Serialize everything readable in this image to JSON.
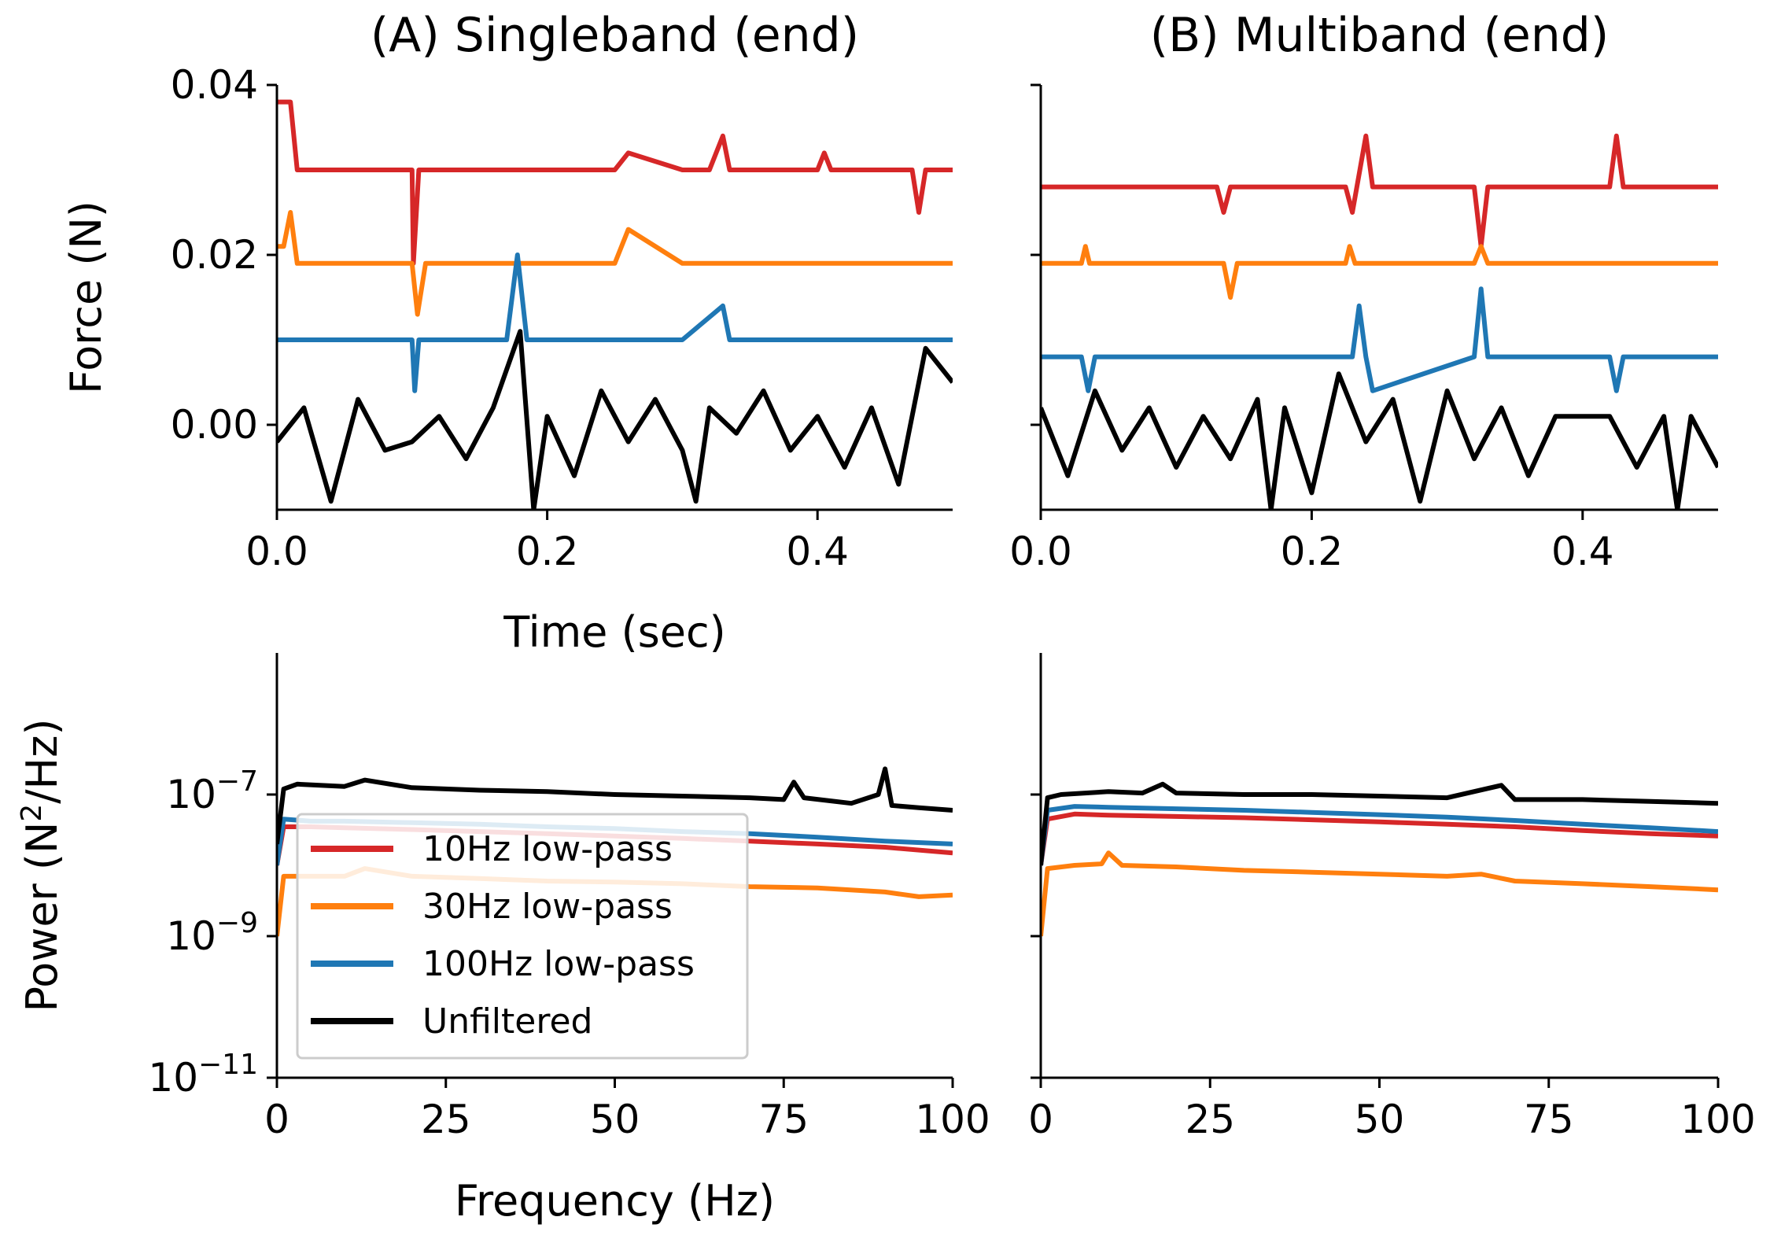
{
  "colors": {
    "red": "#d62728",
    "orange": "#ff7f0e",
    "blue": "#1f77b4",
    "black": "#000000"
  },
  "legend": {
    "placement": "lower-left",
    "entries": [
      {
        "label": "10Hz low-pass",
        "color": "#d62728"
      },
      {
        "label": "30Hz low-pass",
        "color": "#ff7f0e"
      },
      {
        "label": "100Hz low-pass",
        "color": "#1f77b4"
      },
      {
        "label": "Unfiltered",
        "color": "#000000"
      }
    ]
  },
  "chart_data": [
    {
      "panel": "A-top",
      "type": "line",
      "title": "(A) Singleband (end)",
      "xlabel": "Time (sec)",
      "ylabel": "Force (N)",
      "xlim": [
        0,
        0.5
      ],
      "ylim": [
        -0.01,
        0.04
      ],
      "xticks": [
        "0.0",
        "0.2",
        "0.4"
      ],
      "yticks": [
        "0.04",
        "0.02",
        "0.00"
      ],
      "series": [
        {
          "color": "#d62728",
          "x": [
            0,
            0.005,
            0.01,
            0.015,
            0.02,
            0.03,
            0.05,
            0.1,
            0.101,
            0.105,
            0.11,
            0.15,
            0.2,
            0.25,
            0.26,
            0.3,
            0.32,
            0.33,
            0.335,
            0.4,
            0.405,
            0.41,
            0.47,
            0.475,
            0.48,
            0.5
          ],
          "y": [
            0.038,
            0.038,
            0.038,
            0.03,
            0.03,
            0.03,
            0.03,
            0.03,
            0.019,
            0.03,
            0.03,
            0.03,
            0.03,
            0.03,
            0.032,
            0.03,
            0.03,
            0.034,
            0.03,
            0.03,
            0.032,
            0.03,
            0.03,
            0.025,
            0.03,
            0.03
          ]
        },
        {
          "color": "#ff7f0e",
          "x": [
            0,
            0.005,
            0.01,
            0.015,
            0.05,
            0.1,
            0.104,
            0.11,
            0.2,
            0.25,
            0.26,
            0.3,
            0.4,
            0.5
          ],
          "y": [
            0.021,
            0.021,
            0.025,
            0.019,
            0.019,
            0.019,
            0.013,
            0.019,
            0.019,
            0.019,
            0.023,
            0.019,
            0.019,
            0.019
          ]
        },
        {
          "color": "#1f77b4",
          "x": [
            0,
            0.005,
            0.01,
            0.1,
            0.102,
            0.105,
            0.17,
            0.178,
            0.185,
            0.3,
            0.33,
            0.335,
            0.4,
            0.5
          ],
          "y": [
            0.01,
            0.01,
            0.01,
            0.01,
            0.004,
            0.01,
            0.01,
            0.02,
            0.01,
            0.01,
            0.014,
            0.01,
            0.01,
            0.01
          ]
        },
        {
          "color": "#000000",
          "x": [
            0,
            0.02,
            0.04,
            0.06,
            0.08,
            0.1,
            0.12,
            0.14,
            0.16,
            0.18,
            0.19,
            0.2,
            0.22,
            0.24,
            0.26,
            0.28,
            0.3,
            0.31,
            0.32,
            0.34,
            0.36,
            0.38,
            0.4,
            0.42,
            0.44,
            0.46,
            0.48,
            0.5
          ],
          "y": [
            -0.002,
            0.002,
            -0.009,
            0.003,
            -0.003,
            -0.002,
            0.001,
            -0.004,
            0.002,
            0.011,
            -0.01,
            0.001,
            -0.006,
            0.004,
            -0.002,
            0.003,
            -0.003,
            -0.009,
            0.002,
            -0.001,
            0.004,
            -0.003,
            0.001,
            -0.005,
            0.002,
            -0.007,
            0.009,
            0.005
          ]
        }
      ]
    },
    {
      "panel": "B-top",
      "type": "line",
      "title": "(B) Multiband (end)",
      "xlabel": "",
      "ylabel": "",
      "xlim": [
        0,
        0.5
      ],
      "ylim": [
        -0.01,
        0.04
      ],
      "xticks": [
        "0.0",
        "0.2",
        "0.4"
      ],
      "yticks": [],
      "series": [
        {
          "color": "#d62728",
          "x": [
            0,
            0.04,
            0.13,
            0.135,
            0.14,
            0.225,
            0.23,
            0.24,
            0.245,
            0.32,
            0.325,
            0.33,
            0.42,
            0.425,
            0.43,
            0.5
          ],
          "y": [
            0.028,
            0.028,
            0.028,
            0.025,
            0.028,
            0.028,
            0.025,
            0.034,
            0.028,
            0.028,
            0.021,
            0.028,
            0.028,
            0.034,
            0.028,
            0.028
          ]
        },
        {
          "color": "#ff7f0e",
          "x": [
            0,
            0.03,
            0.033,
            0.036,
            0.135,
            0.14,
            0.145,
            0.225,
            0.228,
            0.232,
            0.32,
            0.325,
            0.33,
            0.5
          ],
          "y": [
            0.019,
            0.019,
            0.021,
            0.019,
            0.019,
            0.015,
            0.019,
            0.019,
            0.021,
            0.019,
            0.019,
            0.021,
            0.019,
            0.019
          ]
        },
        {
          "color": "#1f77b4",
          "x": [
            0,
            0.03,
            0.035,
            0.04,
            0.23,
            0.235,
            0.24,
            0.245,
            0.32,
            0.325,
            0.33,
            0.42,
            0.425,
            0.43,
            0.5
          ],
          "y": [
            0.008,
            0.008,
            0.004,
            0.008,
            0.008,
            0.014,
            0.008,
            0.004,
            0.008,
            0.016,
            0.008,
            0.008,
            0.004,
            0.008,
            0.008
          ]
        },
        {
          "color": "#000000",
          "x": [
            0,
            0.02,
            0.04,
            0.06,
            0.08,
            0.1,
            0.12,
            0.14,
            0.16,
            0.17,
            0.18,
            0.2,
            0.22,
            0.24,
            0.26,
            0.28,
            0.3,
            0.32,
            0.34,
            0.36,
            0.38,
            0.4,
            0.42,
            0.44,
            0.46,
            0.47,
            0.48,
            0.5
          ],
          "y": [
            0.002,
            -0.006,
            0.004,
            -0.003,
            0.002,
            -0.005,
            0.001,
            -0.004,
            0.003,
            -0.01,
            0.002,
            -0.008,
            0.006,
            -0.002,
            0.003,
            -0.009,
            0.004,
            -0.004,
            0.002,
            -0.006,
            0.001,
            0.001,
            0.001,
            -0.005,
            0.001,
            -0.01,
            0.001,
            -0.005
          ]
        }
      ]
    },
    {
      "panel": "A-bottom",
      "type": "line",
      "title": "",
      "xlabel": "Frequency (Hz)",
      "ylabel": "Power (N²/Hz)",
      "xlim": [
        0,
        100
      ],
      "ylim": [
        1e-11,
        1e-05
      ],
      "yscale": "log",
      "xticks": [
        "0",
        "25",
        "50",
        "75",
        "100"
      ],
      "yticks": [
        "10⁻⁷",
        "10⁻⁹",
        "10⁻¹¹"
      ],
      "series": [
        {
          "color": "#d62728",
          "x": [
            0,
            1,
            5,
            10,
            20,
            30,
            40,
            50,
            60,
            70,
            80,
            90,
            100
          ],
          "y": [
            1e-08,
            3.5e-08,
            3.5e-08,
            3.4e-08,
            3.2e-08,
            3e-08,
            2.8e-08,
            2.6e-08,
            2.4e-08,
            2.2e-08,
            2e-08,
            1.8e-08,
            1.5e-08
          ]
        },
        {
          "color": "#ff7f0e",
          "x": [
            0,
            1,
            5,
            10,
            13,
            20,
            30,
            40,
            50,
            60,
            70,
            80,
            90,
            95,
            100
          ],
          "y": [
            1e-09,
            7e-09,
            7e-09,
            7e-09,
            9e-09,
            7e-09,
            6.5e-09,
            6e-09,
            5.8e-09,
            5.5e-09,
            5e-09,
            4.8e-09,
            4.2e-09,
            3.6e-09,
            3.8e-09
          ]
        },
        {
          "color": "#1f77b4",
          "x": [
            0,
            1,
            5,
            10,
            20,
            30,
            40,
            50,
            60,
            70,
            80,
            90,
            100
          ],
          "y": [
            1e-08,
            4.5e-08,
            4.2e-08,
            4.2e-08,
            4e-08,
            3.8e-08,
            3.5e-08,
            3.3e-08,
            3e-08,
            2.8e-08,
            2.5e-08,
            2.2e-08,
            2e-08
          ]
        },
        {
          "color": "#000000",
          "x": [
            0,
            1,
            3,
            10,
            13,
            20,
            30,
            40,
            50,
            60,
            70,
            75,
            76.5,
            78,
            85,
            89,
            90,
            91,
            95,
            100
          ],
          "y": [
            2e-08,
            1.2e-07,
            1.4e-07,
            1.3e-07,
            1.6e-07,
            1.25e-07,
            1.15e-07,
            1.1e-07,
            1e-07,
            9.5e-08,
            9e-08,
            8.5e-08,
            1.5e-07,
            9e-08,
            7.5e-08,
            1e-07,
            2.3e-07,
            7e-08,
            6.5e-08,
            6e-08
          ]
        }
      ]
    },
    {
      "panel": "B-bottom",
      "type": "line",
      "title": "",
      "xlabel": "",
      "ylabel": "",
      "xlim": [
        0,
        100
      ],
      "ylim": [
        1e-11,
        1e-05
      ],
      "yscale": "log",
      "xticks": [
        "0",
        "25",
        "50",
        "75",
        "100"
      ],
      "yticks": [],
      "series": [
        {
          "color": "#d62728",
          "x": [
            0,
            1,
            5,
            10,
            20,
            30,
            40,
            50,
            60,
            70,
            80,
            90,
            100
          ],
          "y": [
            1e-08,
            4.5e-08,
            5.3e-08,
            5.1e-08,
            4.9e-08,
            4.7e-08,
            4.4e-08,
            4.1e-08,
            3.8e-08,
            3.5e-08,
            3.1e-08,
            2.8e-08,
            2.6e-08
          ]
        },
        {
          "color": "#ff7f0e",
          "x": [
            0,
            1,
            5,
            9,
            10,
            12,
            20,
            30,
            40,
            50,
            60,
            65,
            70,
            80,
            90,
            100
          ],
          "y": [
            1e-09,
            9e-09,
            1e-08,
            1.05e-08,
            1.5e-08,
            1e-08,
            9.5e-09,
            8.5e-09,
            8e-09,
            7.5e-09,
            7e-09,
            7.5e-09,
            6e-09,
            5.5e-09,
            5e-09,
            4.5e-09
          ]
        },
        {
          "color": "#1f77b4",
          "x": [
            0,
            1,
            5,
            10,
            20,
            30,
            40,
            50,
            60,
            70,
            80,
            90,
            100
          ],
          "y": [
            1e-08,
            6e-08,
            6.8e-08,
            6.6e-08,
            6.3e-08,
            6e-08,
            5.6e-08,
            5.2e-08,
            4.8e-08,
            4.3e-08,
            3.8e-08,
            3.4e-08,
            3e-08
          ]
        },
        {
          "color": "#000000",
          "x": [
            0,
            1,
            3,
            10,
            15,
            18,
            20,
            30,
            40,
            50,
            60,
            68,
            70,
            80,
            90,
            100
          ],
          "y": [
            1e-08,
            9e-08,
            1e-07,
            1.1e-07,
            1.05e-07,
            1.4e-07,
            1.05e-07,
            1e-07,
            1e-07,
            9.5e-08,
            9e-08,
            1.35e-07,
            8.5e-08,
            8.5e-08,
            8e-08,
            7.5e-08
          ]
        }
      ]
    }
  ]
}
